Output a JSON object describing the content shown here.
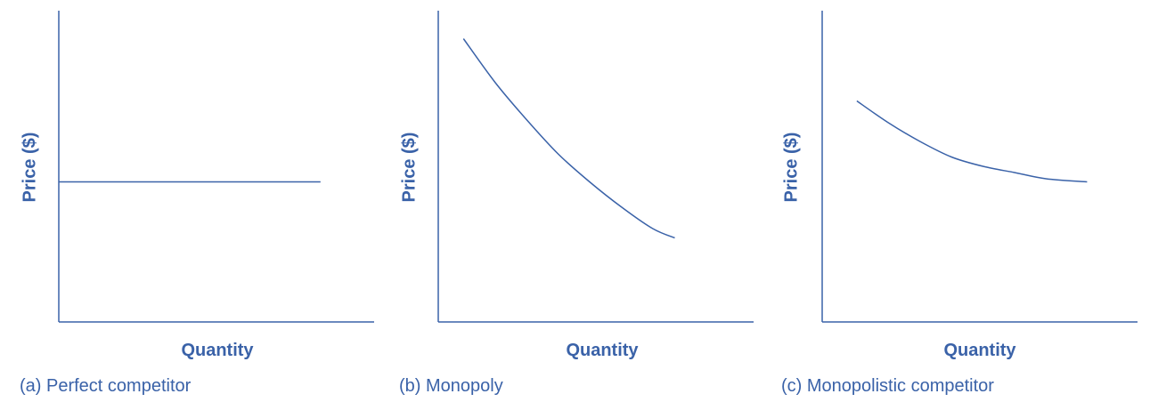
{
  "colors": {
    "axis": "#3a62a8",
    "curve": "#3a62a8",
    "text": "#3a62a8"
  },
  "chart_data": [
    {
      "type": "line",
      "caption": "(a) Perfect competitor",
      "xlabel": "Quantity",
      "ylabel": "Price ($)",
      "xlim": [
        0,
        10
      ],
      "ylim": [
        0,
        10
      ],
      "series": [
        {
          "x": [
            0,
            2,
            4,
            6,
            8.3
          ],
          "y": [
            4.5,
            4.5,
            4.5,
            4.5,
            4.5
          ]
        }
      ]
    },
    {
      "type": "line",
      "caption": "(b) Monopoly",
      "xlabel": "Quantity",
      "ylabel": "Price ($)",
      "xlim": [
        0,
        10
      ],
      "ylim": [
        0,
        10
      ],
      "series": [
        {
          "x": [
            0.8,
            1.8,
            2.8,
            3.8,
            4.8,
            5.8,
            6.8,
            7.5
          ],
          "y": [
            9.1,
            7.7,
            6.5,
            5.4,
            4.5,
            3.7,
            3.0,
            2.7
          ]
        }
      ]
    },
    {
      "type": "line",
      "caption": "(c) Monopolistic competitor",
      "xlabel": "Quantity",
      "ylabel": "Price ($)",
      "xlim": [
        0,
        10
      ],
      "ylim": [
        0,
        10
      ],
      "series": [
        {
          "x": [
            1.1,
            2.1,
            3.1,
            4.1,
            5.1,
            6.1,
            7.1,
            8.4
          ],
          "y": [
            7.1,
            6.4,
            5.8,
            5.3,
            5.0,
            4.8,
            4.6,
            4.5
          ]
        }
      ]
    }
  ]
}
